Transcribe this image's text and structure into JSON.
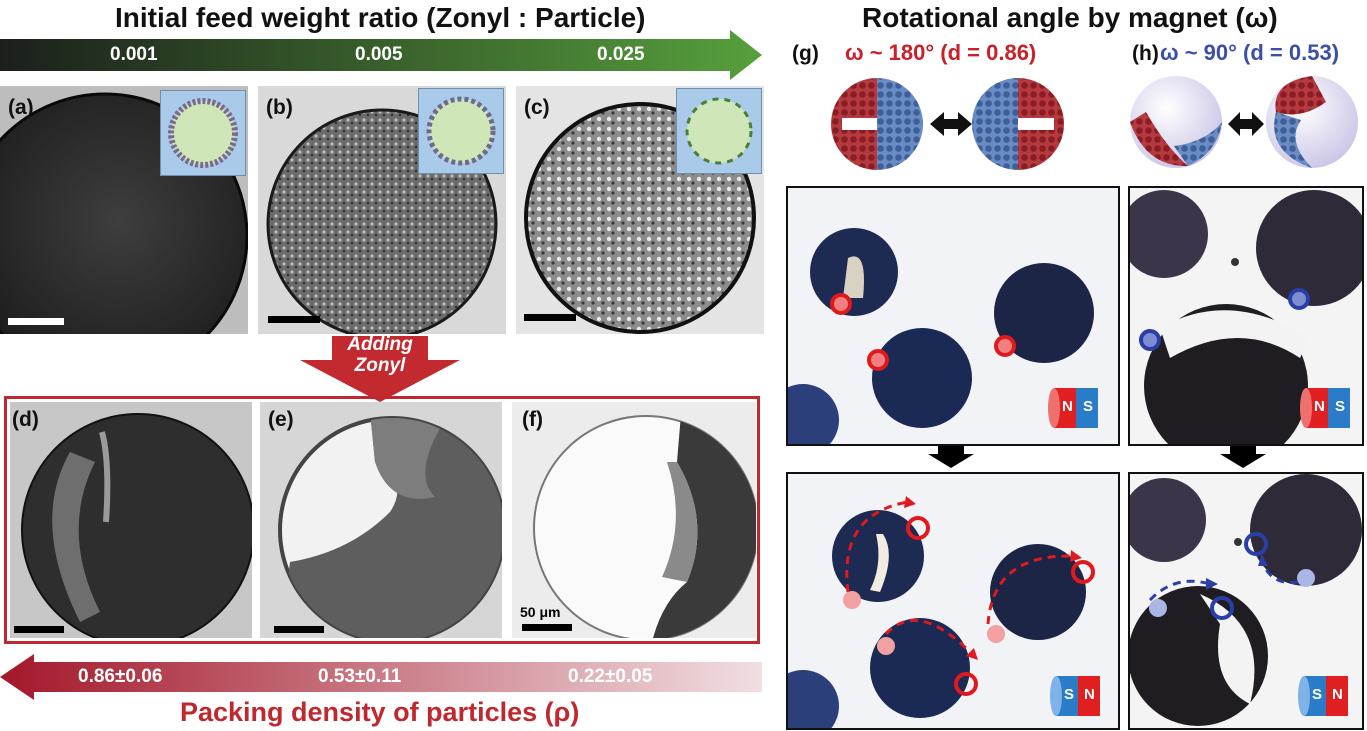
{
  "left": {
    "top_title": "Initial feed weight ratio (Zonyl : Particle)",
    "feed_ratios": [
      "0.001",
      "0.005",
      "0.025"
    ],
    "adding_label_line1": "Adding",
    "adding_label_line2": "Zonyl",
    "panels_top": [
      "(a)",
      "(b)",
      "(c)"
    ],
    "panels_bottom": [
      "(d)",
      "(e)",
      "(f)"
    ],
    "scale_label": "50 μm",
    "densities": [
      "0.86±0.06",
      "0.53±0.11",
      "0.22±0.05"
    ],
    "bottom_title": "Packing density of particles (ρ)"
  },
  "right": {
    "title": "Rotational angle by magnet (ω)",
    "g_label": "(g)",
    "g_caption": "ω ~ 180° (d = 0.86)",
    "h_label": "(h)",
    "h_caption": "ω ~ 90° (d = 0.53)",
    "magnet_n": "N",
    "magnet_s": "S"
  },
  "colors": {
    "green_arrow": "#4f8f3c",
    "red_accent": "#c9202a",
    "blue_accent": "#3a4fa8",
    "frame_red": "#c0282f"
  }
}
